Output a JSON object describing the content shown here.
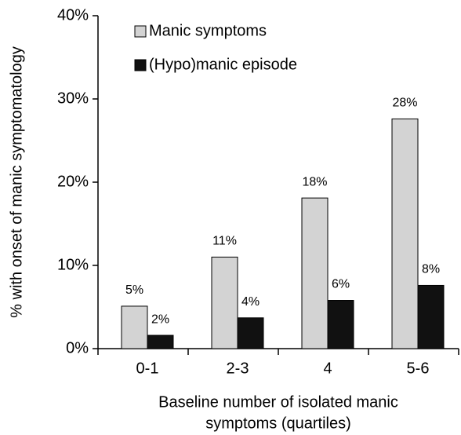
{
  "chart_data": {
    "type": "bar",
    "ylabel": "% with onset of manic symptomatology",
    "xlabel": [
      "Baseline number of isolated manic",
      "symptoms (quartiles)"
    ],
    "categories": [
      "0-1",
      "2-3",
      "4",
      "5-6"
    ],
    "series": [
      {
        "name": "Manic symptoms",
        "color": "#d3d3d3",
        "values": [
          5.1,
          11,
          18.1,
          27.6
        ],
        "value_labels": [
          "5%",
          "11%",
          "18%",
          "28%"
        ]
      },
      {
        "name": "(Hypo)manic episode",
        "color": "#111111",
        "values": [
          1.6,
          3.7,
          5.8,
          7.6
        ],
        "value_labels": [
          "2%",
          "4%",
          "6%",
          "8%"
        ]
      }
    ],
    "ylim": [
      0,
      40
    ],
    "yticks": [
      {
        "value": 0,
        "label": "0%"
      },
      {
        "value": 10,
        "label": "10%"
      },
      {
        "value": 20,
        "label": "20%"
      },
      {
        "value": 30,
        "label": "30%"
      },
      {
        "value": 40,
        "label": "40%"
      }
    ],
    "legend": "upper left"
  }
}
